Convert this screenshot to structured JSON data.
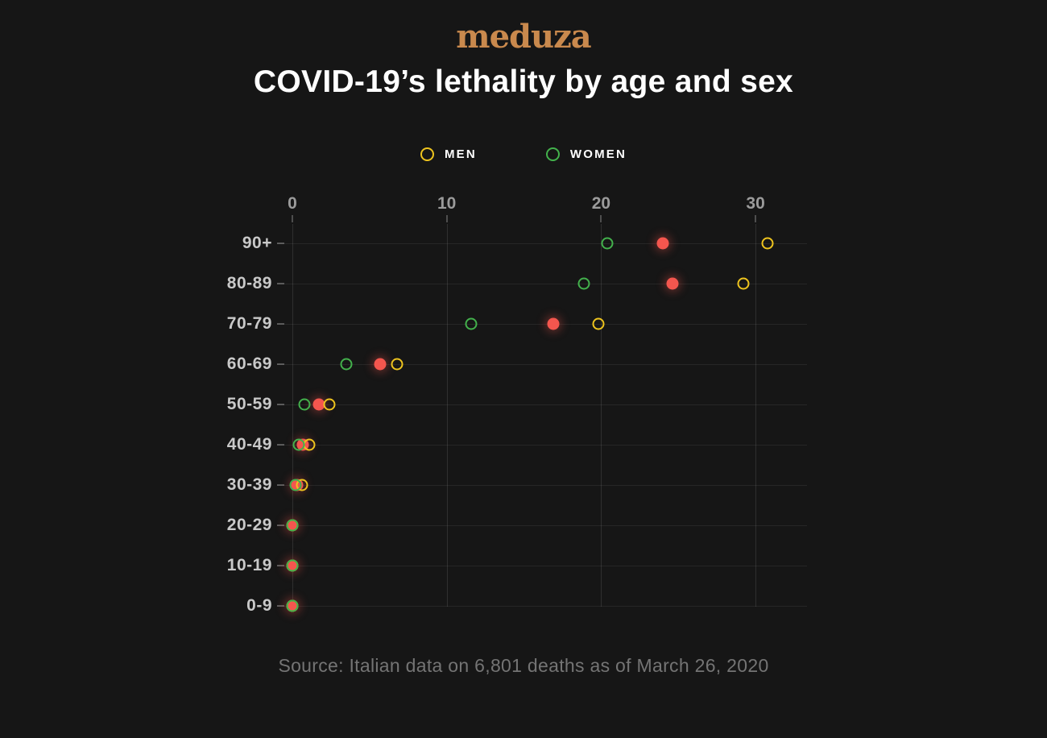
{
  "header": {
    "logo": "meduza",
    "title": "COVID-19’s lethality by age and sex"
  },
  "legend": [
    {
      "label": "MEN",
      "color": "#eec41e",
      "marker": "ring-icon"
    },
    {
      "label": "WOMEN",
      "color": "#43b14c",
      "marker": "ring-icon"
    }
  ],
  "source": "Source: Italian data on 6,801 deaths as of March 26, 2020",
  "colors": {
    "background": "#161616",
    "logo_gold": "#c9894d",
    "title": "#ffffff",
    "men": "#eec41e",
    "women": "#43b14c",
    "overall_red": "#f4564e",
    "axis_label": "#9b9b9b",
    "row_label": "#c9c9c9",
    "source_text": "#747474"
  },
  "chart_data": {
    "type": "scatter",
    "subtype": "horizontal-dot-plot",
    "title": "COVID-19’s lethality by age and sex",
    "categories": [
      "90+",
      "80-89",
      "70-79",
      "60-69",
      "50-59",
      "40-49",
      "30-39",
      "20-29",
      "10-19",
      "0-9"
    ],
    "x_axis": {
      "ticks": [
        0,
        10,
        20,
        30
      ],
      "range": [
        0,
        33.3
      ],
      "grid": true
    },
    "series": [
      {
        "name": "overall",
        "legend_label": null,
        "note": "red filled dots, not labeled in the on-screen legend",
        "style": "filled",
        "color": "#f4564e",
        "values": [
          24.0,
          24.6,
          16.9,
          5.7,
          1.7,
          0.7,
          0.3,
          0,
          0,
          0
        ]
      },
      {
        "name": "MEN",
        "legend_label": "MEN",
        "style": "ring",
        "color": "#eec41e",
        "values": [
          30.8,
          29.2,
          19.8,
          6.8,
          2.4,
          1.1,
          0.6,
          0,
          0,
          0
        ]
      },
      {
        "name": "WOMEN",
        "legend_label": "WOMEN",
        "style": "ring",
        "color": "#43b14c",
        "values": [
          20.4,
          18.9,
          11.6,
          3.5,
          0.8,
          0.4,
          0.2,
          0,
          0,
          0
        ]
      }
    ],
    "legend_position": "top-center",
    "unit": "percent"
  }
}
